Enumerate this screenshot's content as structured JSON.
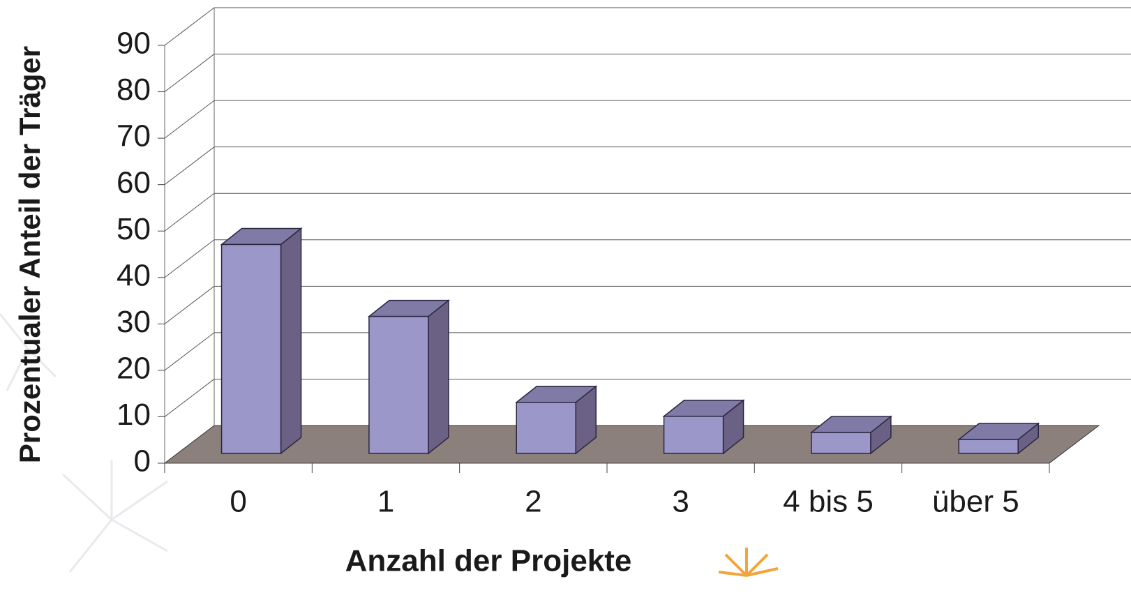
{
  "chart_data": {
    "type": "bar3d",
    "x_label": "Anzahl der Projekte",
    "y_label": "Prozentualer Anteil der Träger",
    "categories": [
      "0",
      "1",
      "2",
      "3",
      "4 bis 5",
      "über 5"
    ],
    "values": [
      45,
      29.5,
      11,
      8,
      4.5,
      3
    ],
    "color": "#9b97c9",
    "ylim": [
      0,
      90
    ],
    "yticks": [
      0,
      10,
      20,
      30,
      40,
      50,
      60,
      70,
      80,
      90
    ],
    "grid": true
  }
}
